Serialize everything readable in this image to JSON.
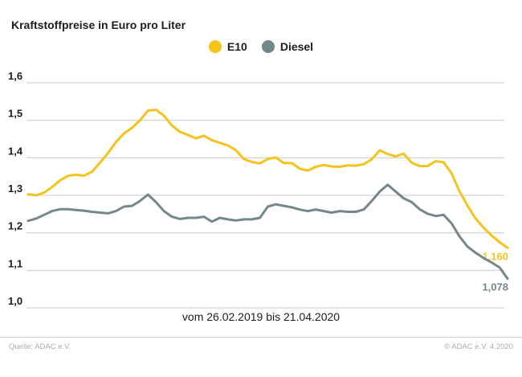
{
  "title": "Kraftstoffpreise in Euro pro Liter",
  "legend": [
    {
      "label": "E10",
      "color": "#F6C31D"
    },
    {
      "label": "Diesel",
      "color": "#748789"
    }
  ],
  "caption": "vom 26.02.2019 bis 21.04.2020",
  "footer": {
    "source": "Quelle: ADAC e.V.",
    "copyright": "© ADAC e.V. 4.2020"
  },
  "colors": {
    "grid": "#c8c8c8",
    "text": "#1d1d1b",
    "footer_text": "#a6aeae",
    "footer_rule": "#ccd5d2",
    "e10": "#F6C31D",
    "diesel": "#748789",
    "background": "#ffffff"
  },
  "chart_data": {
    "type": "line",
    "title": "Kraftstoffpreise in Euro pro Liter",
    "ylabel": "Euro pro Liter",
    "xlabel": "vom 26.02.2019 bis 21.04.2020",
    "x_start": "26.02.2019",
    "x_end": "21.04.2020",
    "x_interval": "weekly",
    "ylim": [
      1.0,
      1.6
    ],
    "grid": "horizontal",
    "legend_position": "top-center",
    "y_ticks": [
      {
        "value": 1.6,
        "label": "1,6"
      },
      {
        "value": 1.5,
        "label": "1,5"
      },
      {
        "value": 1.4,
        "label": "1,4"
      },
      {
        "value": 1.3,
        "label": "1,3"
      },
      {
        "value": 1.2,
        "label": "1,2"
      },
      {
        "value": 1.1,
        "label": "1,1"
      },
      {
        "value": 1.0,
        "label": "1,0"
      }
    ],
    "series": [
      {
        "name": "E10",
        "color": "#F6C31D",
        "end_label": "1,160",
        "final_value": 1.16,
        "values": [
          1.303,
          1.3,
          1.307,
          1.322,
          1.34,
          1.352,
          1.355,
          1.352,
          1.363,
          1.387,
          1.413,
          1.442,
          1.465,
          1.48,
          1.5,
          1.526,
          1.528,
          1.512,
          1.486,
          1.469,
          1.461,
          1.452,
          1.459,
          1.447,
          1.44,
          1.433,
          1.42,
          1.397,
          1.389,
          1.385,
          1.397,
          1.401,
          1.386,
          1.386,
          1.371,
          1.366,
          1.376,
          1.381,
          1.377,
          1.376,
          1.38,
          1.379,
          1.383,
          1.396,
          1.42,
          1.41,
          1.404,
          1.411,
          1.387,
          1.378,
          1.378,
          1.391,
          1.388,
          1.358,
          1.31,
          1.272,
          1.238,
          1.214,
          1.193,
          1.175,
          1.16
        ]
      },
      {
        "name": "Diesel",
        "color": "#748789",
        "end_label": "1,078",
        "final_value": 1.078,
        "values": [
          1.232,
          1.238,
          1.248,
          1.258,
          1.263,
          1.263,
          1.261,
          1.259,
          1.256,
          1.254,
          1.252,
          1.258,
          1.27,
          1.272,
          1.285,
          1.302,
          1.282,
          1.258,
          1.243,
          1.237,
          1.24,
          1.24,
          1.243,
          1.23,
          1.24,
          1.236,
          1.233,
          1.236,
          1.236,
          1.24,
          1.27,
          1.276,
          1.272,
          1.268,
          1.262,
          1.258,
          1.262,
          1.258,
          1.254,
          1.258,
          1.256,
          1.256,
          1.262,
          1.285,
          1.31,
          1.328,
          1.31,
          1.292,
          1.282,
          1.263,
          1.251,
          1.245,
          1.248,
          1.225,
          1.19,
          1.163,
          1.147,
          1.133,
          1.121,
          1.108,
          1.078
        ]
      }
    ]
  }
}
